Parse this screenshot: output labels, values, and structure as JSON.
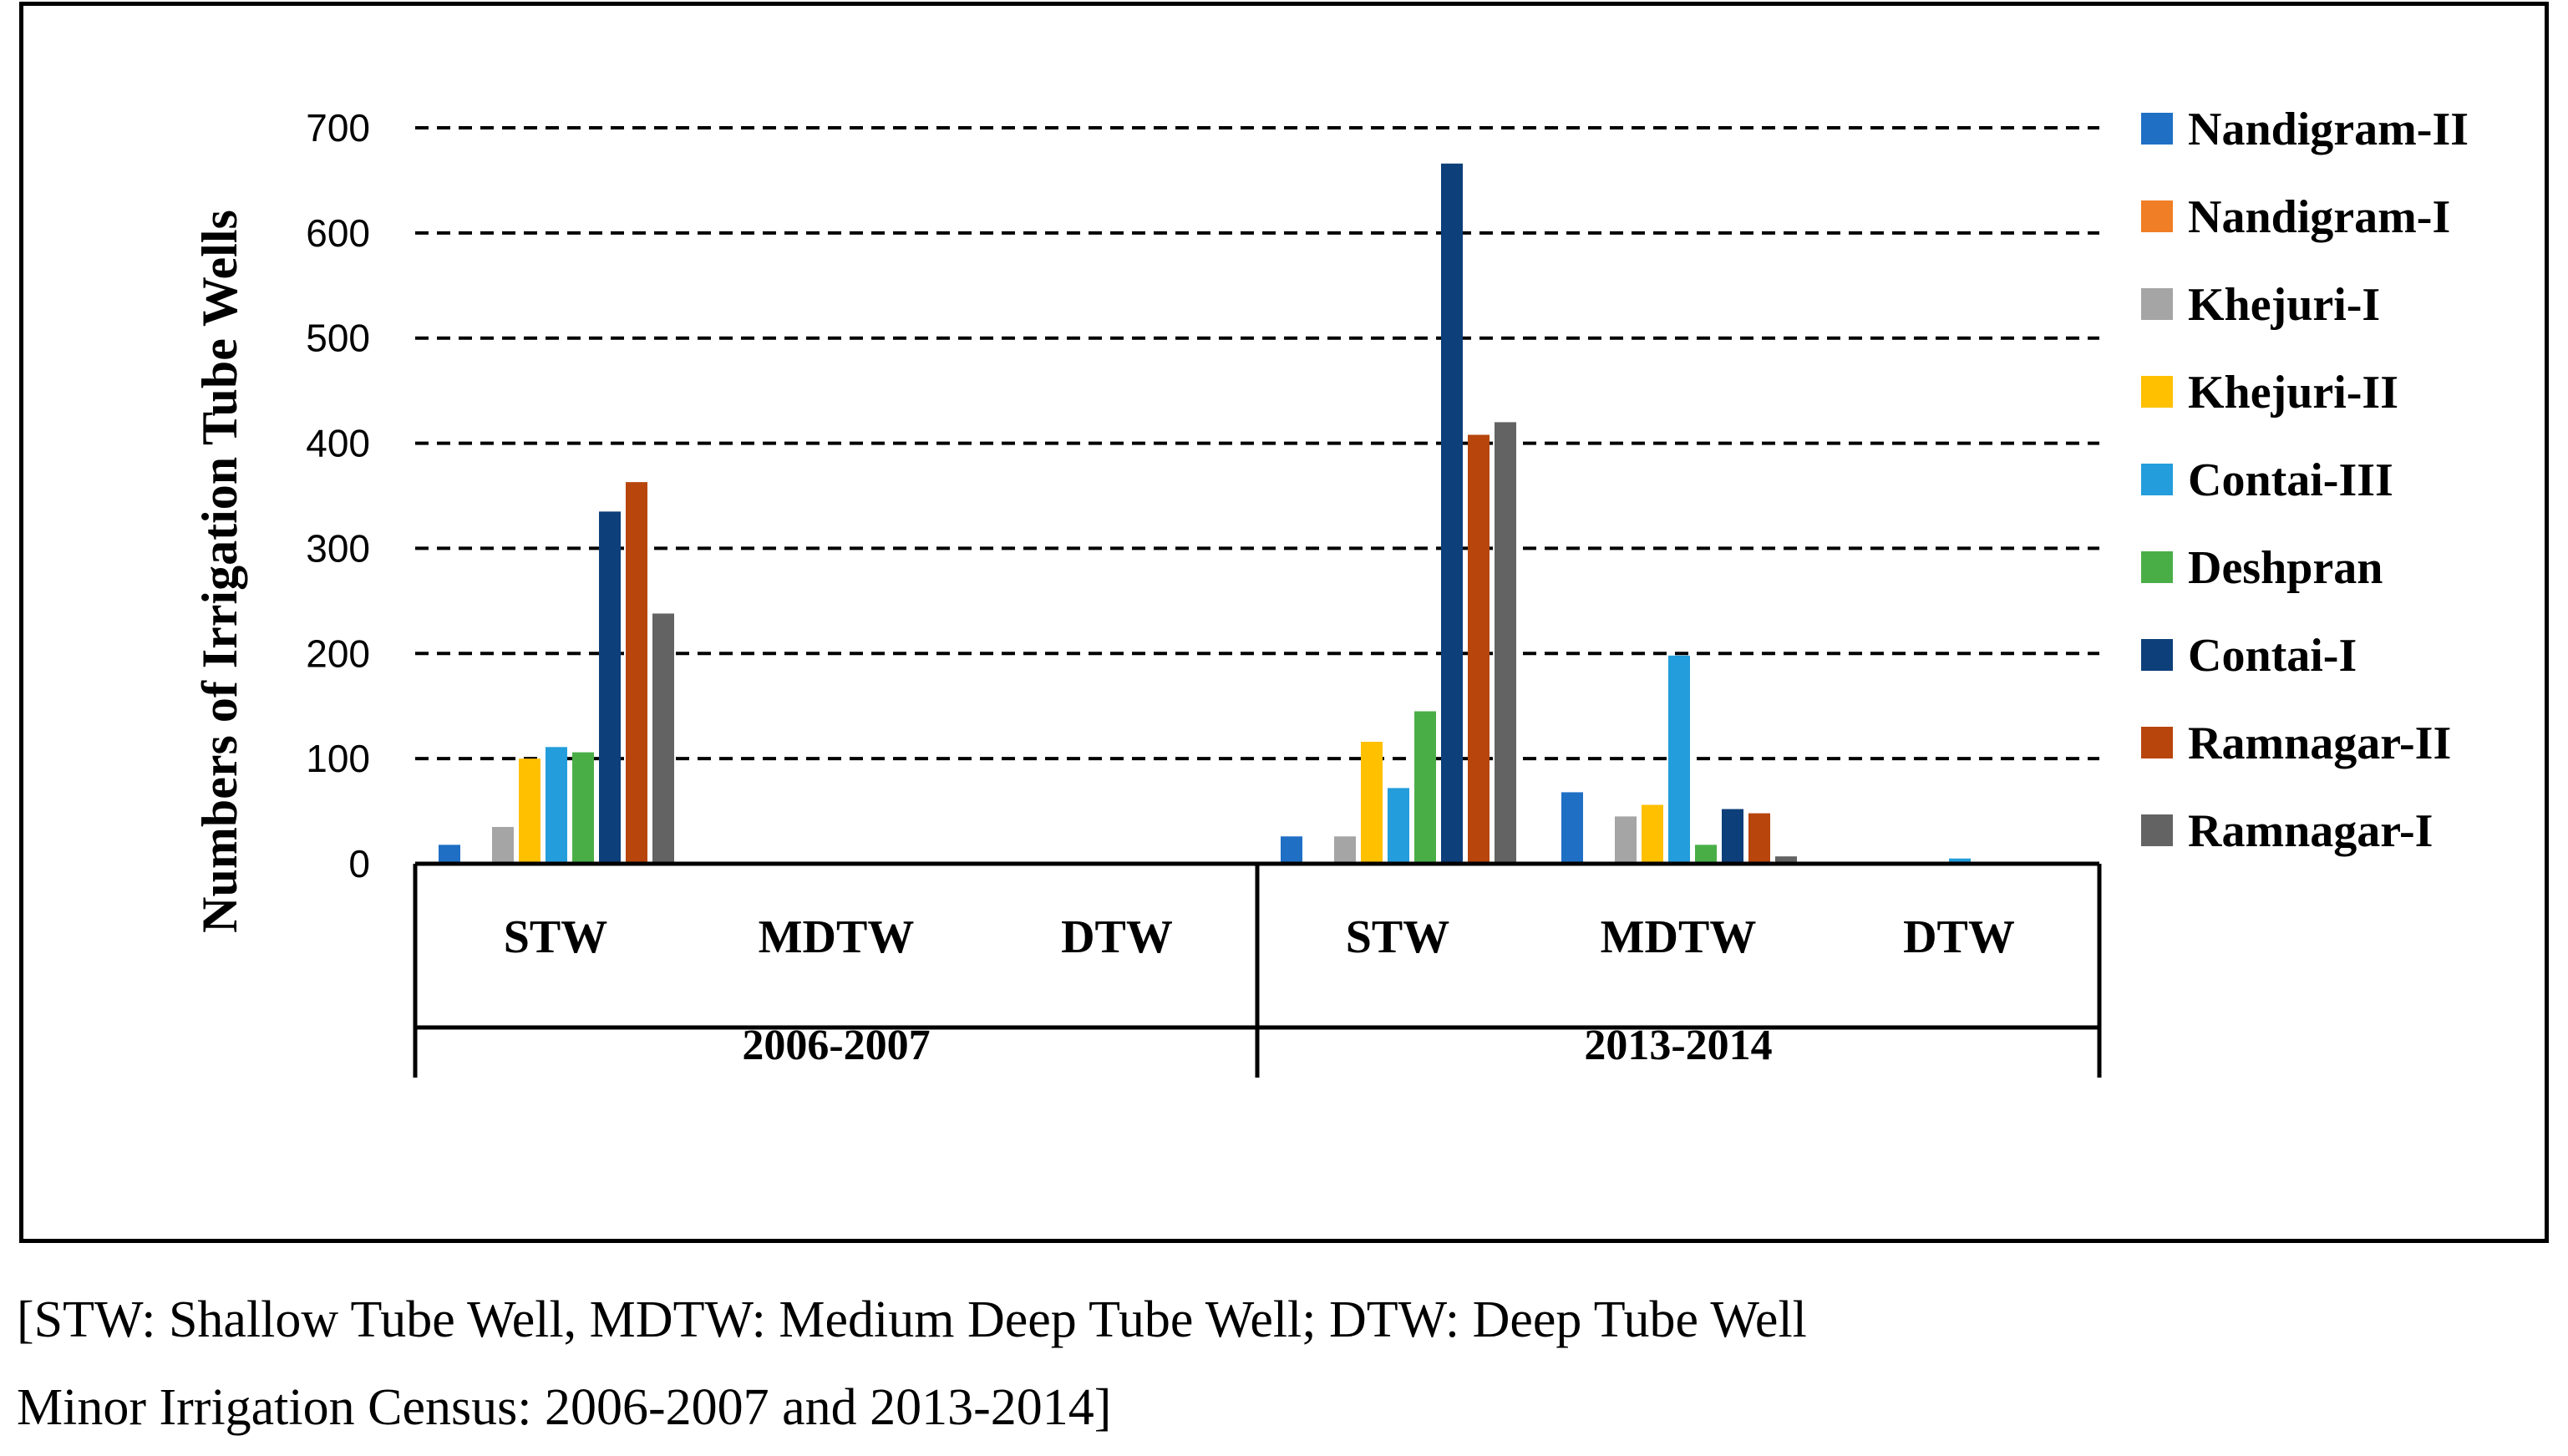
{
  "chart_data": {
    "type": "bar",
    "ylabel": "Numbers  of Irrigation Tube Wells",
    "ylim": [
      0,
      700
    ],
    "yticks": [
      0,
      100,
      200,
      300,
      400,
      500,
      600,
      700
    ],
    "grid": "dashed horizontal",
    "legend_position": "right",
    "groups": [
      {
        "label": "2006-2007",
        "categories": [
          "STW",
          "MDTW",
          "DTW"
        ]
      },
      {
        "label": "2013-2014",
        "categories": [
          "STW",
          "MDTW",
          "DTW"
        ]
      }
    ],
    "categories": [
      "STW",
      "MDTW",
      "DTW",
      "STW",
      "MDTW",
      "DTW"
    ],
    "series": [
      {
        "name": "Nandigram-II",
        "color": "#1F6FC5",
        "values": [
          18,
          0,
          0,
          26,
          68,
          0
        ]
      },
      {
        "name": "Nandigram-I",
        "color": "#F07E26",
        "values": [
          0,
          0,
          0,
          2,
          0,
          0
        ]
      },
      {
        "name": "Khejuri-I",
        "color": "#A5A5A5",
        "values": [
          35,
          0,
          0,
          26,
          45,
          0
        ]
      },
      {
        "name": "Khejuri-II",
        "color": "#FFC000",
        "values": [
          100,
          0,
          0,
          116,
          56,
          0
        ]
      },
      {
        "name": "Contai-III",
        "color": "#239DDB",
        "values": [
          111,
          0,
          0,
          72,
          198,
          5
        ]
      },
      {
        "name": "Deshpran",
        "color": "#4AAE47",
        "values": [
          106,
          0,
          0,
          145,
          18,
          0
        ]
      },
      {
        "name": "Contai-I",
        "color": "#0D3F7A",
        "values": [
          335,
          0,
          0,
          666,
          52,
          0
        ]
      },
      {
        "name": "Ramnagar-II",
        "color": "#B7450C",
        "values": [
          363,
          0,
          0,
          408,
          48,
          0
        ]
      },
      {
        "name": "Ramnagar-I",
        "color": "#636363",
        "values": [
          238,
          0,
          0,
          420,
          7,
          0
        ]
      }
    ]
  },
  "caption": {
    "line1": "[STW: Shallow Tube Well, MDTW: Medium Deep Tube Well; DTW: Deep Tube Well",
    "line2": "Minor Irrigation Census: 2006-2007 and 2013-2014]"
  }
}
